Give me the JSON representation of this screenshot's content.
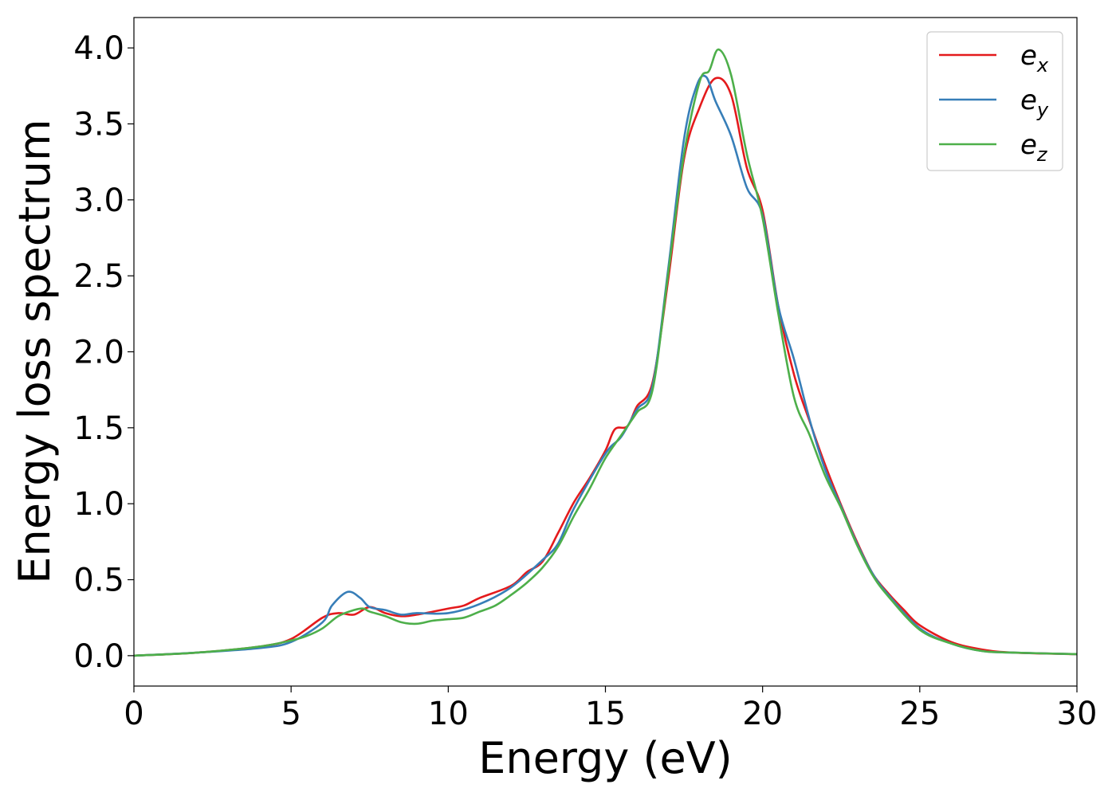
{
  "chart_data": {
    "type": "line",
    "title": "",
    "xlabel": "Energy (eV)",
    "ylabel": "Energy loss spectrum",
    "xlim": [
      0,
      30
    ],
    "ylim": [
      -0.2,
      4.2
    ],
    "xticks": [
      0,
      5,
      10,
      15,
      20,
      25,
      30
    ],
    "xtick_labels": [
      "0",
      "5",
      "10",
      "15",
      "20",
      "25",
      "30"
    ],
    "yticks": [
      0.0,
      0.5,
      1.0,
      1.5,
      2.0,
      2.5,
      3.0,
      3.5,
      4.0
    ],
    "ytick_labels": [
      "0.0",
      "0.5",
      "1.0",
      "1.5",
      "2.0",
      "2.5",
      "3.0",
      "3.5",
      "4.0"
    ],
    "grid": false,
    "legend_position": "top-right",
    "series": [
      {
        "name": "e_x",
        "label_base": "e",
        "label_sub": "x",
        "color": "#e41a1c",
        "x": [
          0,
          2,
          4,
          5,
          6,
          6.5,
          7,
          7.5,
          8,
          8.5,
          9,
          10,
          10.5,
          11,
          12,
          12.5,
          13,
          13.5,
          14,
          14.5,
          15,
          15.3,
          15.7,
          16,
          16.5,
          17,
          17.5,
          18,
          18.5,
          19,
          19.5,
          20,
          20.5,
          21,
          21.5,
          22,
          22.5,
          23,
          23.5,
          24,
          24.5,
          25,
          26,
          27,
          28,
          30
        ],
        "y": [
          0,
          0.02,
          0.06,
          0.11,
          0.25,
          0.28,
          0.27,
          0.32,
          0.28,
          0.26,
          0.27,
          0.31,
          0.33,
          0.38,
          0.46,
          0.55,
          0.62,
          0.81,
          1.01,
          1.17,
          1.35,
          1.49,
          1.51,
          1.64,
          1.8,
          2.48,
          3.27,
          3.61,
          3.8,
          3.69,
          3.21,
          2.93,
          2.3,
          1.85,
          1.54,
          1.25,
          0.99,
          0.75,
          0.54,
          0.41,
          0.3,
          0.2,
          0.09,
          0.04,
          0.02,
          0.01
        ]
      },
      {
        "name": "e_y",
        "label_base": "e",
        "label_sub": "y",
        "color": "#377eb8",
        "x": [
          0,
          2,
          4,
          5,
          6,
          6.3,
          6.8,
          7.2,
          7.5,
          8,
          8.5,
          9,
          10,
          11,
          12,
          13,
          13.5,
          14,
          15,
          15.5,
          16,
          16.5,
          17,
          17.5,
          17.9,
          18.2,
          18.5,
          19,
          19.5,
          20,
          20.5,
          21,
          21.5,
          22,
          22.5,
          23,
          23.5,
          24,
          25,
          26,
          27,
          28,
          30
        ],
        "y": [
          0,
          0.02,
          0.05,
          0.09,
          0.22,
          0.33,
          0.42,
          0.38,
          0.32,
          0.3,
          0.27,
          0.28,
          0.28,
          0.34,
          0.45,
          0.63,
          0.74,
          0.97,
          1.33,
          1.44,
          1.62,
          1.78,
          2.55,
          3.4,
          3.75,
          3.81,
          3.65,
          3.42,
          3.08,
          2.9,
          2.3,
          1.95,
          1.55,
          1.22,
          0.98,
          0.74,
          0.54,
          0.4,
          0.18,
          0.08,
          0.03,
          0.02,
          0.01
        ]
      },
      {
        "name": "e_z",
        "label_base": "e",
        "label_sub": "z",
        "color": "#4daf4a",
        "x": [
          0,
          2,
          4,
          5,
          5.5,
          6,
          6.5,
          7,
          7.3,
          7.5,
          8,
          8.5,
          9,
          9.5,
          10,
          10.5,
          11,
          11.5,
          12,
          12.5,
          13,
          13.5,
          14,
          14.5,
          15,
          15.5,
          16,
          16.5,
          17,
          17.5,
          18,
          18.3,
          18.6,
          19,
          19.5,
          20,
          20.5,
          21,
          21.5,
          22,
          22.5,
          23,
          23.5,
          24,
          25,
          26,
          27,
          28,
          30
        ],
        "y": [
          0,
          0.02,
          0.06,
          0.1,
          0.13,
          0.18,
          0.26,
          0.3,
          0.31,
          0.29,
          0.26,
          0.22,
          0.21,
          0.23,
          0.24,
          0.25,
          0.29,
          0.33,
          0.4,
          0.48,
          0.58,
          0.72,
          0.92,
          1.1,
          1.3,
          1.45,
          1.6,
          1.75,
          2.52,
          3.3,
          3.78,
          3.85,
          3.99,
          3.82,
          3.3,
          2.88,
          2.25,
          1.7,
          1.45,
          1.18,
          0.97,
          0.73,
          0.53,
          0.39,
          0.17,
          0.08,
          0.03,
          0.02,
          0.01
        ]
      }
    ]
  }
}
